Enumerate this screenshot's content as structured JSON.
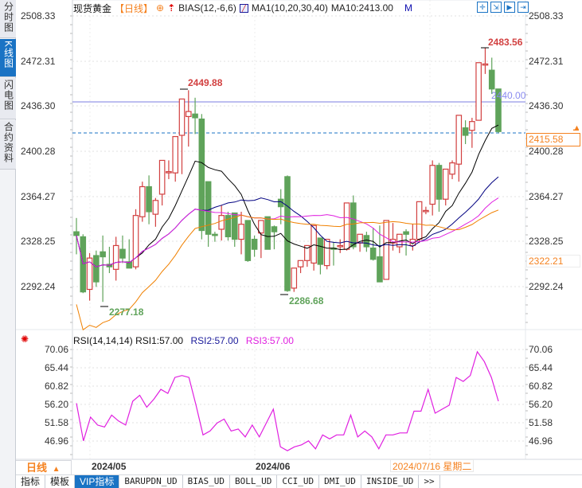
{
  "side_tabs": [
    {
      "label": "分时图",
      "active": false
    },
    {
      "label": "K线图",
      "active": true
    },
    {
      "label": "闪电图",
      "active": false
    },
    {
      "label": "合约资料",
      "active": false
    }
  ],
  "header": {
    "title": "现货黄金",
    "period": "【日线】",
    "bias": "BIAS(12,-6,6)",
    "ma_params": "MA1(10,20,30,40)",
    "ma10": "MA10:2413.00",
    "m_label": "M"
  },
  "toolbar": {
    "buttons": [
      {
        "name": "crosshair-icon",
        "glyph": "✛"
      },
      {
        "name": "zoom-in-icon",
        "glyph": "⇲"
      },
      {
        "name": "zoom-out-icon",
        "glyph": "▶"
      },
      {
        "name": "move-right-icon",
        "glyph": "⇥"
      }
    ]
  },
  "price_axis": {
    "ticks": [
      "2508.33",
      "2472.31",
      "2436.30",
      "2400.28",
      "2364.27",
      "2328.25",
      "2292.24"
    ],
    "current_price": "2415.58",
    "ma_tag": "2322.21",
    "crosshair_price": "2440.00"
  },
  "annotations": {
    "high1": "2449.88",
    "high2": "2483.56",
    "low1": "2277.18",
    "low2": "2286.68"
  },
  "rsi": {
    "title": "RSI(14,14,14)",
    "rsi1": "RSI1:57.00",
    "rsi2": "RSI2:57.00",
    "rsi3": "RSI3:57.00",
    "ticks": [
      "70.06",
      "65.44",
      "60.82",
      "56.20",
      "51.58",
      "46.96"
    ]
  },
  "time_axis": {
    "period_label": "日线",
    "period_arrow": "▲",
    "dates": [
      "2024/05",
      "2024/06"
    ],
    "cursor_date": "2024/07/16 星期二"
  },
  "bottom_tabs": [
    "指标",
    "模板",
    "VIP指标",
    "BARUPDN_UD",
    "BIAS_UD",
    "BOLL_UD",
    "CCI_UD",
    "DMI_UD",
    "INSIDE_UD",
    ">>"
  ],
  "colors": {
    "up": "#d24040",
    "down": "#5fa35a",
    "ma_black": "#000000",
    "ma_navy": "#000080",
    "ma_magenta": "#e020e0",
    "ma_orange": "#f08000",
    "rsi": "#e020e0",
    "accent": "#1a73c4",
    "highlight": "#f58220"
  },
  "chart_data": {
    "type": "candlestick",
    "title": "现货黄金 日线",
    "ylim": [
      2277.18,
      2508.33
    ],
    "candles": [
      [
        2336,
        2347,
        2318,
        2333
      ],
      [
        2332,
        2334,
        2287,
        2288
      ],
      [
        2290,
        2319,
        2281,
        2315
      ],
      [
        2317,
        2321,
        2292,
        2296
      ],
      [
        2320,
        2333,
        2280,
        2316
      ],
      [
        2310,
        2324,
        2303,
        2308
      ],
      [
        2306,
        2332,
        2297,
        2325
      ],
      [
        2322,
        2333,
        2311,
        2315
      ],
      [
        2312,
        2330,
        2307,
        2307
      ],
      [
        2308,
        2354,
        2306,
        2349
      ],
      [
        2348,
        2376,
        2344,
        2372
      ],
      [
        2372,
        2381,
        2342,
        2352
      ],
      [
        2350,
        2363,
        2340,
        2361
      ],
      [
        2366,
        2388,
        2357,
        2393
      ],
      [
        2384,
        2393,
        2378,
        2384
      ],
      [
        2383,
        2412,
        2376,
        2412
      ],
      [
        2413,
        2440,
        2382,
        2442
      ],
      [
        2428,
        2449,
        2404,
        2432
      ],
      [
        2430,
        2443,
        2414,
        2427
      ],
      [
        2426,
        2430,
        2330,
        2337
      ],
      [
        2376,
        2372,
        2324,
        2334
      ],
      [
        2334,
        2336,
        2328,
        2333
      ],
      [
        2338,
        2357,
        2329,
        2349
      ],
      [
        2349,
        2352,
        2329,
        2332
      ],
      [
        2351,
        2346,
        2324,
        2330
      ],
      [
        2330,
        2352,
        2318,
        2342
      ],
      [
        2345,
        2330,
        2312,
        2313
      ],
      [
        2330,
        2333,
        2316,
        2322
      ],
      [
        2335,
        2339,
        2315,
        2345
      ],
      [
        2348,
        2348,
        2322,
        2322
      ],
      [
        2340,
        2341,
        2322,
        2336
      ],
      [
        2362,
        2370,
        2342,
        2356
      ],
      [
        2380,
        2381,
        2288,
        2289
      ],
      [
        2291,
        2304,
        2288,
        2307
      ],
      [
        2308,
        2313,
        2303,
        2313
      ],
      [
        2313,
        2320,
        2308,
        2325
      ],
      [
        2311,
        2340,
        2305,
        2341
      ],
      [
        2331,
        2330,
        2302,
        2310
      ],
      [
        2309,
        2325,
        2306,
        2330
      ],
      [
        2323,
        2328,
        2309,
        2322
      ],
      [
        2325,
        2330,
        2319,
        2325
      ],
      [
        2322,
        2359,
        2321,
        2359
      ],
      [
        2359,
        2365,
        2322,
        2324
      ],
      [
        2327,
        2334,
        2320,
        2334
      ],
      [
        2333,
        2336,
        2320,
        2324
      ],
      [
        2323,
        2339,
        2313,
        2314
      ],
      [
        2316,
        2341,
        2296,
        2296
      ],
      [
        2298,
        2340,
        2299,
        2345
      ],
      [
        2327,
        2343,
        2321,
        2330
      ],
      [
        2324,
        2333,
        2319,
        2334
      ],
      [
        2336,
        2338,
        2317,
        2334
      ],
      [
        2325,
        2342,
        2321,
        2330
      ],
      [
        2330,
        2360,
        2327,
        2360
      ],
      [
        2353,
        2356,
        2350,
        2353
      ],
      [
        2358,
        2393,
        2349,
        2389
      ],
      [
        2389,
        2391,
        2352,
        2362
      ],
      [
        2362,
        2386,
        2357,
        2386
      ],
      [
        2382,
        2393,
        2378,
        2391
      ],
      [
        2390,
        2421,
        2376,
        2429
      ],
      [
        2419,
        2425,
        2406,
        2413
      ],
      [
        2417,
        2427,
        2403,
        2424
      ],
      [
        2425,
        2470,
        2427,
        2471
      ],
      [
        2470,
        2483,
        2462,
        2470
      ],
      [
        2465,
        2475,
        2446,
        2450
      ],
      [
        2450,
        2443,
        2415,
        2416
      ]
    ],
    "rsi_series": [
      56.5,
      47.0,
      53.0,
      51.0,
      50.5,
      53.5,
      52.0,
      51.0,
      57.0,
      58.5,
      55.5,
      57.5,
      60.0,
      59.0,
      63.0,
      63.5,
      63.0,
      56.0,
      48.5,
      49.5,
      51.5,
      52.5,
      49.5,
      50.0,
      48.0,
      51.0,
      48.0,
      51.5,
      55.0,
      45.5,
      44.5,
      45.5,
      46.0,
      47.0,
      45.0,
      48.5,
      47.5,
      48.5,
      48.5,
      53.5,
      48.0,
      49.5,
      48.0,
      45.0,
      48.5,
      48.5,
      49.0,
      49.0,
      54.5,
      54.5,
      60.0,
      54.0,
      55.0,
      56.0,
      63.0,
      62.0,
      63.5,
      69.5,
      67.0,
      63.0,
      57.0
    ]
  }
}
